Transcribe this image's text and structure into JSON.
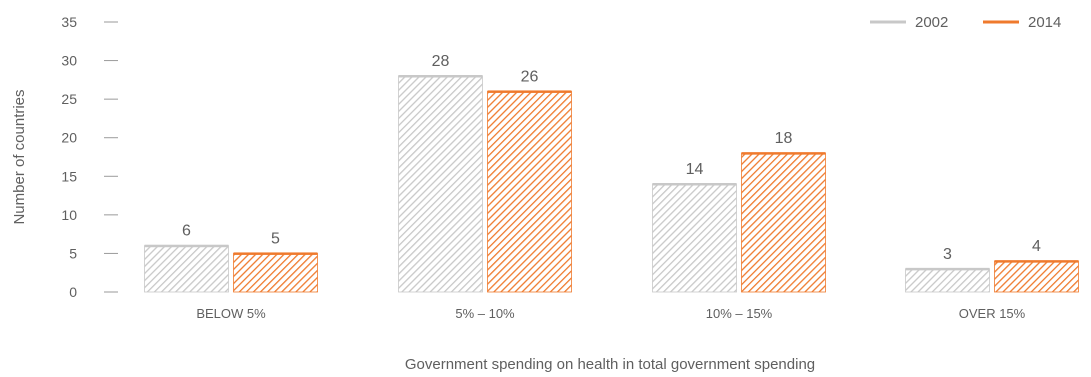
{
  "chart_data": {
    "type": "bar",
    "categories": [
      "BELOW 5%",
      "5% – 10%",
      "10% – 15%",
      "OVER 15%"
    ],
    "series": [
      {
        "name": "2002",
        "values": [
          6,
          28,
          14,
          3
        ],
        "color": "#c8c8c8"
      },
      {
        "name": "2014",
        "values": [
          5,
          26,
          18,
          4
        ],
        "color": "#ef7a2d"
      }
    ],
    "ylabel": "Number of countries",
    "xlabel": "Government spending on health in total government spending",
    "ylim": [
      0,
      35
    ],
    "yticks": [
      0,
      5,
      10,
      15,
      20,
      25,
      30,
      35
    ],
    "bar_pattern": "diagonal-hatch",
    "legend_position": "top-right",
    "data_labels": true,
    "grid": false
  }
}
